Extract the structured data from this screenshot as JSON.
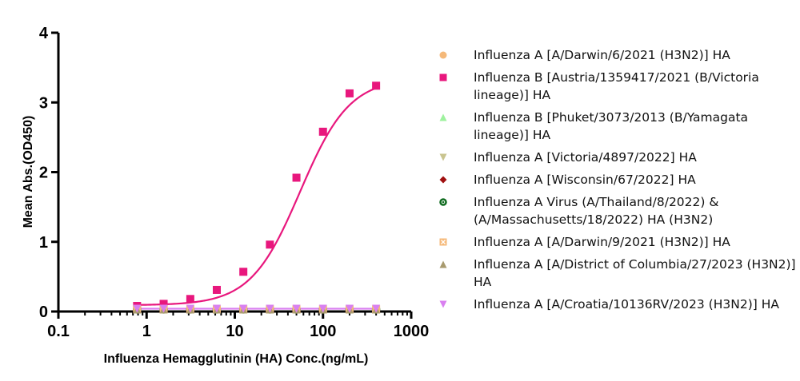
{
  "chart_data": {
    "type": "scatter",
    "xlabel": "Influenza Hemagglutinin (HA) Conc.(ng/mL)",
    "ylabel": "Mean Abs.(OD450)",
    "xscale": "log",
    "xlim": [
      0.1,
      1000
    ],
    "ylim": [
      0,
      4
    ],
    "xticks": [
      "0.1",
      "1",
      "10",
      "100",
      "1000"
    ],
    "yticks": [
      "0",
      "1",
      "2",
      "3",
      "4"
    ],
    "grid": false,
    "legend_position": "right",
    "x": [
      0.78,
      1.56,
      3.13,
      6.25,
      12.5,
      25,
      50,
      100,
      200,
      400
    ],
    "series": [
      {
        "name": "Influenza A [A/Darwin/6/2021 (H3N2)] HA",
        "marker": "circle",
        "color": "#f5b97a",
        "values": [
          0.03,
          0.03,
          0.03,
          0.03,
          0.03,
          0.03,
          0.03,
          0.03,
          0.03,
          0.03
        ],
        "fit": false
      },
      {
        "name": "Influenza B [Austria/1359417/2021 (B/Victoria lineage)] HA",
        "marker": "square",
        "color": "#e8177d",
        "values": [
          0.08,
          0.11,
          0.18,
          0.31,
          0.57,
          0.96,
          1.92,
          2.58,
          3.13,
          3.24
        ],
        "fit": true
      },
      {
        "name": "Influenza B [Phuket/3073/2013 (B/Yamagata lineage)] HA",
        "marker": "triangle-up",
        "color": "#9ef29e",
        "values": [
          0.03,
          0.03,
          0.03,
          0.03,
          0.03,
          0.03,
          0.03,
          0.03,
          0.03,
          0.03
        ],
        "fit": false
      },
      {
        "name": "Influenza A [Victoria/4897/2022] HA",
        "marker": "triangle-down",
        "color": "#c9c48f",
        "values": [
          0.03,
          0.03,
          0.03,
          0.03,
          0.03,
          0.03,
          0.03,
          0.03,
          0.03,
          0.03
        ],
        "fit": false
      },
      {
        "name": "Influenza A [Wisconsin/67/2022] HA",
        "marker": "diamond",
        "color": "#a01010",
        "values": [
          0.03,
          0.03,
          0.03,
          0.03,
          0.03,
          0.03,
          0.03,
          0.03,
          0.03,
          0.03
        ],
        "fit": false
      },
      {
        "name": "Influenza A Virus (A/Thailand/8/2022) & (A/Massachusetts/18/2022) HA (H3N2)",
        "marker": "circle-dot",
        "color": "#0f6b1f",
        "values": [
          0.03,
          0.03,
          0.03,
          0.03,
          0.03,
          0.03,
          0.03,
          0.03,
          0.03,
          0.03
        ],
        "fit": false
      },
      {
        "name": "Influenza A [A/Darwin/9/2021 (H3N2)] HA",
        "marker": "square-x",
        "color": "#f5b97a",
        "values": [
          0.03,
          0.03,
          0.03,
          0.03,
          0.03,
          0.03,
          0.03,
          0.03,
          0.03,
          0.03
        ],
        "fit": false
      },
      {
        "name": "Influenza A [A/District of Columbia/27/2023 (H3N2)] HA",
        "marker": "triangle-up",
        "color": "#a89a6e",
        "values": [
          0.03,
          0.03,
          0.03,
          0.03,
          0.03,
          0.03,
          0.03,
          0.03,
          0.03,
          0.03
        ],
        "fit": false
      },
      {
        "name": "Influenza A [A/Croatia/10136RV/2023 (H3N2)] HA",
        "marker": "triangle-down",
        "color": "#d980f0",
        "values": [
          0.04,
          0.04,
          0.04,
          0.04,
          0.04,
          0.04,
          0.04,
          0.04,
          0.04,
          0.04
        ],
        "fit": true
      }
    ],
    "fit_curves": [
      {
        "series": "Influenza B [Austria/1359417/2021 (B/Victoria lineage)] HA",
        "model": "4PL",
        "bottom": 0.09,
        "top": 3.35,
        "ec50": 55,
        "hill": 1.55
      }
    ]
  }
}
